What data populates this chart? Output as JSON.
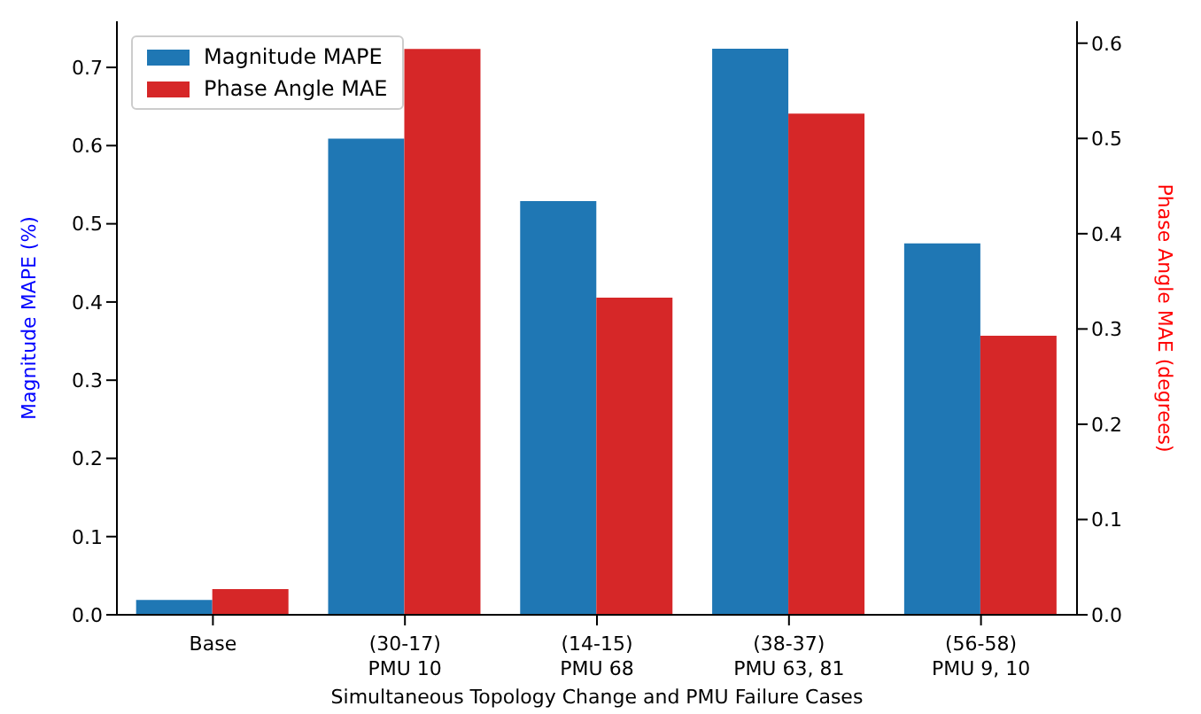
{
  "chart_data": {
    "type": "bar",
    "xlabel": "Simultaneous Topology Change and PMU Failure Cases",
    "ylabel": "Magnitude MAPE (%)",
    "y2label": "Phase Angle MAE (degrees)",
    "categories": [
      "Base",
      "(30-17)\nPMU 10",
      "(14-15)\nPMU 68",
      "(38-37)\nPMU 63, 81",
      "(56-58)\nPMU 9, 10"
    ],
    "series": [
      {
        "name": "Magnitude MAPE",
        "color": "#1f77b4",
        "values": [
          0.019,
          0.609,
          0.529,
          0.724,
          0.475
        ]
      },
      {
        "name": "Phase Angle MAE",
        "color": "#d62728",
        "axis": "y2",
        "values": [
          0.027,
          0.594,
          0.333,
          0.526,
          0.293
        ]
      }
    ],
    "ylim": [
      0,
      0.759
    ],
    "yticks": [
      {
        "value": 0,
        "label": "0.0"
      },
      0.1,
      0.2,
      0.3,
      0.4,
      0.5,
      0.6,
      0.7
    ],
    "y2lim": [
      0,
      0.623
    ],
    "y2ticks": [
      {
        "value": 0,
        "label": "0.0"
      },
      0.1,
      0.2,
      0.3,
      0.4,
      0.5,
      0.6
    ],
    "legend": "top left"
  }
}
